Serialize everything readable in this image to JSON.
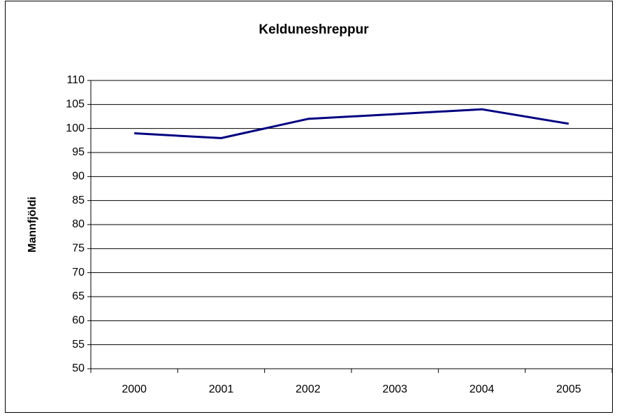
{
  "chart_data": {
    "type": "line",
    "title": "Kelduneshreppur",
    "y_label": "Mannfjöldi",
    "categories": [
      "2000",
      "2001",
      "2002",
      "2003",
      "2004",
      "2005"
    ],
    "series": [
      {
        "name": "Mannfjöldi",
        "color": "#000080",
        "values": [
          99,
          98,
          102,
          103,
          104,
          101
        ]
      }
    ],
    "ylim": [
      50,
      110
    ],
    "yticks": [
      50,
      55,
      60,
      65,
      70,
      75,
      80,
      85,
      90,
      95,
      100,
      105,
      110
    ],
    "grid": true
  }
}
